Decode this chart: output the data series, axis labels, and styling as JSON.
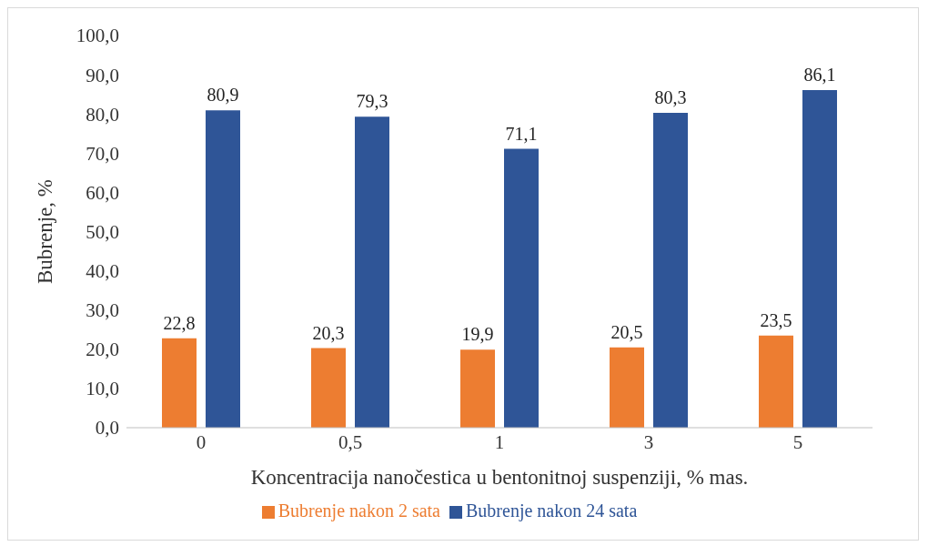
{
  "chart_data": {
    "type": "bar",
    "xlabel": "Koncentracija nanočestica u bentonitnoj suspenziji, % mas.",
    "ylabel": "Bubrenje, %",
    "categories": [
      "0",
      "0,5",
      "1",
      "3",
      "5"
    ],
    "series": [
      {
        "name": "Bubrenje nakon 2 sata",
        "color": "#ed7d31",
        "values": [
          22.8,
          20.3,
          19.9,
          20.5,
          23.5
        ],
        "value_labels": [
          "22,8",
          "20,3",
          "19,9",
          "20,5",
          "23,5"
        ]
      },
      {
        "name": "Bubrenje nakon 24 sata",
        "color": "#2f5597",
        "values": [
          80.9,
          79.3,
          71.1,
          80.3,
          86.1
        ],
        "value_labels": [
          "80,9",
          "79,3",
          "71,1",
          "80,3",
          "86,1"
        ]
      }
    ],
    "ylim": [
      0,
      100
    ],
    "yticks": [
      {
        "value": 0,
        "label": "0,0"
      },
      {
        "value": 10,
        "label": "10,0"
      },
      {
        "value": 20,
        "label": "20,0"
      },
      {
        "value": 30,
        "label": "30,0"
      },
      {
        "value": 40,
        "label": "40,0"
      },
      {
        "value": 50,
        "label": "50,0"
      },
      {
        "value": 60,
        "label": "60,0"
      },
      {
        "value": 70,
        "label": "70,0"
      },
      {
        "value": 80,
        "label": "80,0"
      },
      {
        "value": 90,
        "label": "90,0"
      },
      {
        "value": 100,
        "label": "100,0"
      }
    ],
    "grid": false,
    "legend": "bottom"
  }
}
